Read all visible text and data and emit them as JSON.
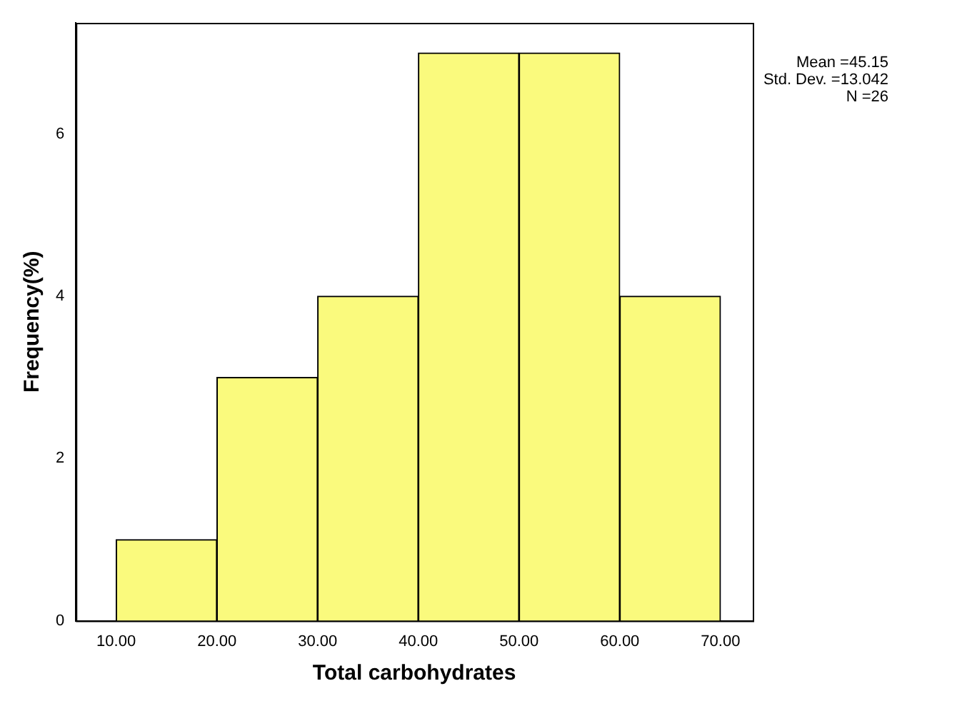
{
  "chart_data": {
    "type": "histogram",
    "xlabel": "Total carbohydrates",
    "ylabel": "Frequency(%)",
    "bins": [
      10,
      20,
      30,
      40,
      50,
      60,
      70
    ],
    "values": [
      1,
      3,
      4,
      7,
      7,
      4
    ],
    "color": "#fafa7d",
    "xlim": [
      6,
      73.2
    ],
    "xticks": [
      {
        "value": 10,
        "label": "10.00"
      },
      {
        "value": 20,
        "label": "20.00"
      },
      {
        "value": 30,
        "label": "30.00"
      },
      {
        "value": 40,
        "label": "40.00"
      },
      {
        "value": 50,
        "label": "50.00"
      },
      {
        "value": 60,
        "label": "60.00"
      },
      {
        "value": 70,
        "label": "70.00"
      }
    ],
    "ylim": [
      0,
      7.37
    ],
    "yticks": [
      0,
      2,
      4,
      6
    ],
    "grid": false,
    "legend": false,
    "annotations": [
      "Mean =45.15",
      "Std. Dev. =13.042",
      "N =26"
    ]
  }
}
